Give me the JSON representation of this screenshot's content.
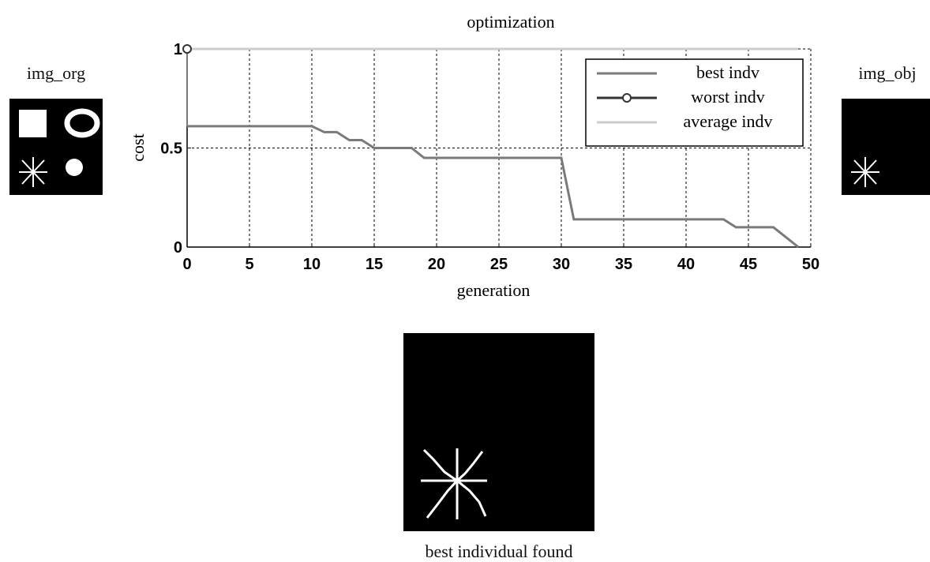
{
  "panels": {
    "img_org_title": "img_org",
    "img_obj_title": "img_obj",
    "best_caption": "best individual found"
  },
  "chart_data": {
    "type": "line",
    "title": "optimization",
    "xlabel": "generation",
    "ylabel": "cost",
    "xlim": [
      0,
      50
    ],
    "ylim": [
      0,
      1
    ],
    "xticks": [
      0,
      5,
      10,
      15,
      20,
      25,
      30,
      35,
      40,
      45,
      50
    ],
    "xtick_labels": [
      "0",
      "5",
      "10",
      "15",
      "20",
      "25",
      "30",
      "35",
      "40",
      "45",
      "50"
    ],
    "yticks": [
      0,
      0.5,
      1
    ],
    "ytick_labels": [
      "0",
      "0.5",
      "1"
    ],
    "grid": true,
    "legend_position": "top-right",
    "series": [
      {
        "name": "best indv",
        "color": "#7a7a7a",
        "x": [
          0,
          10,
          11,
          12,
          13,
          14,
          15,
          16,
          17,
          18,
          19,
          20,
          25,
          30,
          31,
          40,
          43,
          44,
          45,
          46,
          47,
          48,
          49
        ],
        "y": [
          0.61,
          0.61,
          0.58,
          0.58,
          0.54,
          0.54,
          0.5,
          0.5,
          0.5,
          0.5,
          0.45,
          0.45,
          0.45,
          0.45,
          0.14,
          0.14,
          0.14,
          0.1,
          0.1,
          0.1,
          0.1,
          0.05,
          0.0
        ]
      },
      {
        "name": "worst indv",
        "color": "#333333",
        "marker": "circle",
        "x": [
          0
        ],
        "y": [
          1.0
        ]
      },
      {
        "name": "average indv",
        "color": "#cccccc",
        "x": [
          0,
          10,
          20,
          30,
          40,
          49
        ],
        "y": [
          1.0,
          1.0,
          1.0,
          1.0,
          1.0,
          1.0
        ]
      }
    ]
  }
}
